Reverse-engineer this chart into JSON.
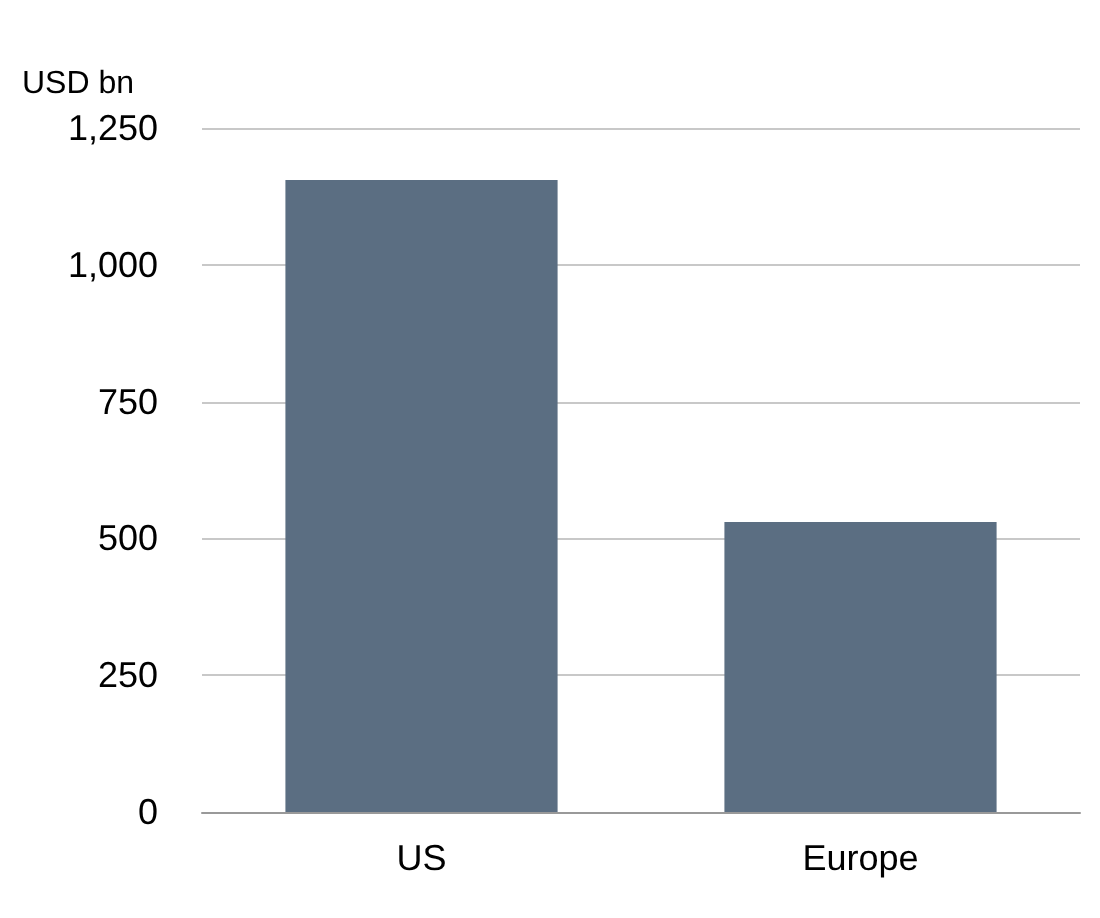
{
  "chart_data": {
    "type": "bar",
    "ylabel": "USD bn",
    "categories": [
      "US",
      "Europe"
    ],
    "values": [
      1155,
      530
    ],
    "color": "#5b6e82",
    "ylim": [
      0,
      1250
    ],
    "yticks": [
      {
        "value": 0,
        "label": "0"
      },
      {
        "value": 250,
        "label": "250"
      },
      {
        "value": 500,
        "label": "500"
      },
      {
        "value": 750,
        "label": "750"
      },
      {
        "value": 1000,
        "label": "1,000"
      },
      {
        "value": 1250,
        "label": "1,250"
      }
    ],
    "grid": "y"
  }
}
